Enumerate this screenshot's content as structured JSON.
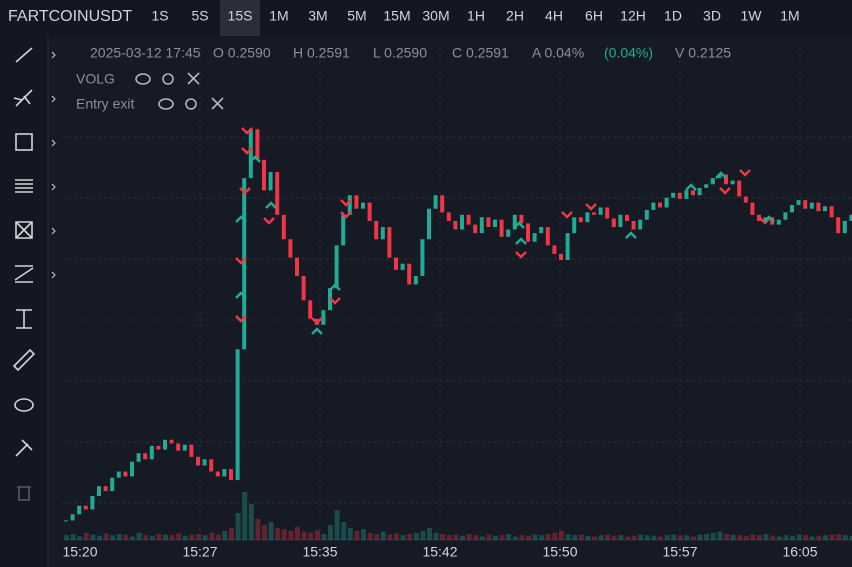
{
  "header": {
    "symbol": "FARTCOINUSDT",
    "timeframes": [
      "1S",
      "5S",
      "15S",
      "1M",
      "3M",
      "5M",
      "15M",
      "30M",
      "1H",
      "2H",
      "4H",
      "6H",
      "12H",
      "1D",
      "3D",
      "1W",
      "1M"
    ],
    "active_timeframe": 2
  },
  "legend": {
    "date": "2025-03-12 17:45",
    "open": "O 0.2590",
    "high": "H 0.2591",
    "low": "L 0.2590",
    "close": "C 0.2591",
    "amplitude": "A 0.04%",
    "change": "(0.04%)",
    "volume": "V 0.2125"
  },
  "indicators": [
    "VOLG",
    "Entry exit"
  ],
  "chart": {
    "x_labels": [
      "15:20",
      "15:27",
      "15:35",
      "15:42",
      "15:50",
      "15:57",
      "16:05"
    ],
    "up_color": "#22ab94",
    "down_color": "#f23645",
    "ylim": [
      0.2324,
      0.2733
    ],
    "vlim": [
      0,
      100
    ],
    "closes": [
      0.234,
      0.2345,
      0.2352,
      0.2349,
      0.236,
      0.2368,
      0.2364,
      0.2375,
      0.238,
      0.2376,
      0.2388,
      0.2395,
      0.239,
      0.2401,
      0.2398,
      0.2406,
      0.2403,
      0.2397,
      0.2402,
      0.2392,
      0.2385,
      0.239,
      0.238,
      0.2376,
      0.2382,
      0.2373,
      0.248,
      0.262,
      0.266,
      0.2635,
      0.261,
      0.2625,
      0.259,
      0.257,
      0.2555,
      0.254,
      0.252,
      0.2505,
      0.25,
      0.2512,
      0.253,
      0.2565,
      0.259,
      0.2606,
      0.2595,
      0.26,
      0.2585,
      0.257,
      0.258,
      0.2555,
      0.2545,
      0.255,
      0.2533,
      0.254,
      0.257,
      0.2595,
      0.2606,
      0.2592,
      0.2585,
      0.2578,
      0.259,
      0.2582,
      0.2575,
      0.2588,
      0.258,
      0.2586,
      0.2572,
      0.2578,
      0.259,
      0.2583,
      0.2568,
      0.2575,
      0.258,
      0.2565,
      0.2558,
      0.2553,
      0.2575,
      0.2588,
      0.2584,
      0.2592,
      0.259,
      0.2596,
      0.2587,
      0.258,
      0.259,
      0.2585,
      0.2578,
      0.2586,
      0.2594,
      0.26,
      0.2596,
      0.2604,
      0.2608,
      0.2603,
      0.261,
      0.2606,
      0.2612,
      0.2615,
      0.262,
      0.2623,
      0.2615,
      0.2618,
      0.2605,
      0.26,
      0.259,
      0.2585,
      0.2588,
      0.2582,
      0.2586,
      0.2592,
      0.2598,
      0.2602,
      0.2595,
      0.26,
      0.2593,
      0.2597,
      0.2588,
      0.2575,
      0.2585,
      0.259
    ],
    "volumes": [
      8,
      10,
      6,
      12,
      9,
      7,
      11,
      8,
      10,
      9,
      6,
      12,
      8,
      7,
      10,
      9,
      8,
      11,
      7,
      9,
      10,
      8,
      12,
      9,
      15,
      20,
      45,
      80,
      60,
      35,
      25,
      30,
      20,
      18,
      15,
      22,
      14,
      12,
      16,
      10,
      25,
      50,
      30,
      20,
      15,
      18,
      12,
      10,
      14,
      9,
      11,
      8,
      10,
      12,
      15,
      20,
      12,
      10,
      8,
      9,
      7,
      10,
      8,
      6,
      9,
      7,
      8,
      10,
      6,
      8,
      7,
      9,
      8,
      10,
      12,
      15,
      10,
      8,
      9,
      7,
      6,
      8,
      9,
      7,
      8,
      6,
      7,
      9,
      8,
      7,
      6,
      8,
      9,
      7,
      8,
      6,
      9,
      10,
      12,
      14,
      10,
      9,
      8,
      7,
      9,
      8,
      10,
      7,
      6,
      8,
      7,
      9,
      8,
      6,
      7,
      8,
      9,
      10,
      8,
      7
    ]
  }
}
